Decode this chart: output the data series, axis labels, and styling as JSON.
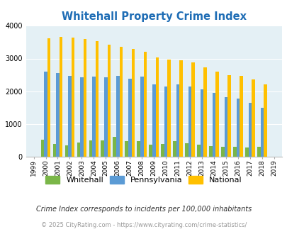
{
  "title": "Whitehall Property Crime Index",
  "years": [
    "1999",
    "2000",
    "2001",
    "2002",
    "2003",
    "2004",
    "2005",
    "2006",
    "2007",
    "2008",
    "2009",
    "2010",
    "2011",
    "2012",
    "2013",
    "2014",
    "2015",
    "2016",
    "2017",
    "2018",
    "2019"
  ],
  "whitehall": [
    0,
    520,
    390,
    340,
    440,
    500,
    500,
    610,
    480,
    470,
    360,
    390,
    480,
    410,
    360,
    330,
    310,
    300,
    290,
    310,
    0
  ],
  "pennsylvania": [
    0,
    2590,
    2560,
    2470,
    2430,
    2440,
    2430,
    2460,
    2380,
    2440,
    2210,
    2150,
    2200,
    2150,
    2060,
    1960,
    1820,
    1770,
    1650,
    1500,
    0
  ],
  "national": [
    0,
    3620,
    3650,
    3630,
    3590,
    3520,
    3430,
    3350,
    3290,
    3200,
    3040,
    2970,
    2940,
    2880,
    2730,
    2600,
    2490,
    2460,
    2360,
    2200,
    0
  ],
  "whitehall_color": "#7ab648",
  "pennsylvania_color": "#5b9bd5",
  "national_color": "#ffc000",
  "plot_bg": "#e4f0f5",
  "ylim": [
    0,
    4000
  ],
  "yticks": [
    0,
    1000,
    2000,
    3000,
    4000
  ],
  "title_color": "#1f6db5",
  "title_fontsize": 10.5,
  "footer_text1": "Crime Index corresponds to incidents per 100,000 inhabitants",
  "footer_text2": "© 2025 CityRating.com - https://www.cityrating.com/crime-statistics/",
  "legend_labels": [
    "Whitehall",
    "Pennsylvania",
    "National"
  ],
  "grid_color": "#ffffff"
}
